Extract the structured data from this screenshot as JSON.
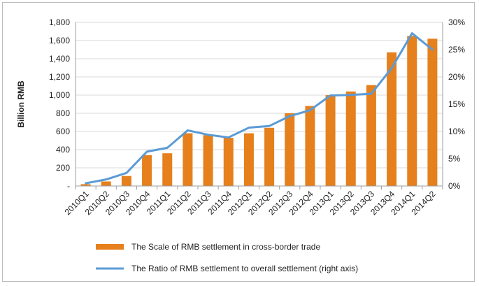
{
  "chart_data": {
    "type": "bar+line",
    "title": "",
    "ylabel": "Billion RMB",
    "y2label": "",
    "ylim": [
      0,
      1800
    ],
    "yticks": [
      0,
      200,
      400,
      600,
      800,
      1000,
      1200,
      1400,
      1600,
      1800
    ],
    "ytick_labels": [
      "-",
      "200",
      "400",
      "600",
      "800",
      "1,000",
      "1,200",
      "1,400",
      "1,600",
      "1,800"
    ],
    "y2lim": [
      0,
      30
    ],
    "y2ticks": [
      0,
      5,
      10,
      15,
      20,
      25,
      30
    ],
    "y2tick_labels": [
      "0%",
      "5%",
      "10%",
      "15%",
      "20%",
      "25%",
      "30%"
    ],
    "grid": true,
    "legend_position": "bottom",
    "categories": [
      "2010Q1",
      "2010Q2",
      "2010Q3",
      "2010Q4",
      "2011Q1",
      "2011Q2",
      "2011Q3",
      "2011Q4",
      "2012Q1",
      "2012Q2",
      "2012Q3",
      "2012Q4",
      "2013Q1",
      "2013Q2",
      "2013Q3",
      "2013Q4",
      "2014Q1",
      "2014Q2"
    ],
    "series": [
      {
        "name": "The Scale of RMB settlement in cross-border trade",
        "type": "bar",
        "axis": "left",
        "color": "#E5801D",
        "values": [
          20,
          50,
          110,
          340,
          360,
          580,
          560,
          530,
          580,
          640,
          800,
          880,
          1000,
          1040,
          1110,
          1470,
          1650,
          1620
        ]
      },
      {
        "name": "The Ratio of RMB settlement to overall settlement (right axis)",
        "type": "line",
        "axis": "right",
        "color": "#5B9BD5",
        "values": [
          0.5,
          1.2,
          2.4,
          6.3,
          7.0,
          10.2,
          9.4,
          8.9,
          10.7,
          11.0,
          12.8,
          13.9,
          16.6,
          16.7,
          16.9,
          21.6,
          28.0,
          25.0
        ]
      }
    ]
  }
}
